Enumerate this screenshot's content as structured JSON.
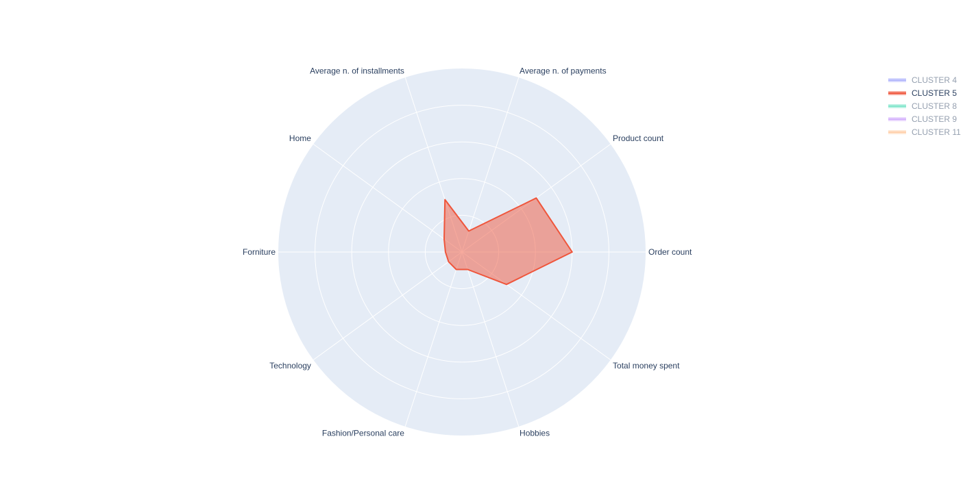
{
  "chart_data": {
    "type": "radar",
    "axes": [
      "Order count",
      "Product count",
      "Average n. of payments",
      "Average n. of installments",
      "Home",
      "Forniture",
      "Technology",
      "Fashion/Personal care",
      "Hobbies",
      "Total money spent"
    ],
    "rlim": [
      0,
      1
    ],
    "grid": true,
    "legend_position": "top-right",
    "series": [
      {
        "name": "CLUSTER 4",
        "color": "#636efa",
        "visible": false,
        "values": []
      },
      {
        "name": "CLUSTER 5",
        "color": "#ef553b",
        "visible": true,
        "values": [
          0.6,
          0.5,
          0.12,
          0.3,
          0.12,
          0.09,
          0.09,
          0.1,
          0.1,
          0.3
        ]
      },
      {
        "name": "CLUSTER 8",
        "color": "#00cc96",
        "visible": false,
        "values": []
      },
      {
        "name": "CLUSTER 9",
        "color": "#ab63fa",
        "visible": false,
        "values": []
      },
      {
        "name": "CLUSTER 11",
        "color": "#ffa15a",
        "visible": false,
        "values": []
      }
    ]
  }
}
